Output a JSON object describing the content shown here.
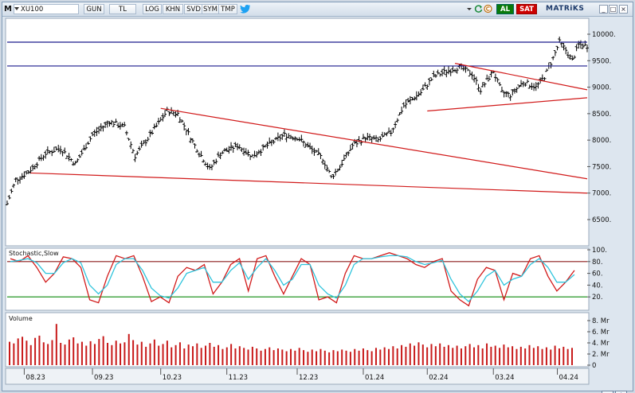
{
  "toolbar": {
    "menu_label": "M",
    "symbol": "XU100",
    "period": "GUN",
    "currency": "TL",
    "buttons": [
      "LOG",
      "KHN",
      "SVD",
      "SYM",
      "TMP"
    ],
    "buy_label": "AL",
    "sell_label": "SAT",
    "brand": "MATRiKS"
  },
  "icons": {
    "twitter": "twitter-icon",
    "refresh": "refresh-icon",
    "copyright": "c-icon",
    "minimize": "minimize-icon",
    "maximize": "maximize-icon",
    "close": "close-icon",
    "bottom_a": "sync-icon",
    "bottom_b": "settings-icon"
  },
  "colors": {
    "price_bars": "#000000",
    "horizontal_lines": "#1a1a8c",
    "trend_lines": "#d11a1a",
    "stoch_k": "#d11a1a",
    "stoch_d": "#2fc4dc",
    "stoch_upper": "#8c1a1a",
    "stoch_lower": "#0a8a0a",
    "volume": "#c81a1a",
    "panel_bg": "#ffffff"
  },
  "chart_data": [
    {
      "type": "ohlc",
      "x_tick_labels": [
        "08.23",
        "09.23",
        "10.23",
        "11.23",
        "12.23",
        "01.24",
        "02.24",
        "03.24",
        "04.24"
      ],
      "y_tick_labels": [
        "10000.",
        "9500.",
        "9000.",
        "8500.",
        "8000.",
        "7500.",
        "7000.",
        "6500."
      ],
      "ylim": [
        6000,
        10250
      ],
      "horizontal_levels": [
        9850,
        9400
      ],
      "trend_lines": [
        {
          "from": [
            "08.23",
            7380
          ],
          "to": [
            "end",
            7000
          ]
        },
        {
          "from": [
            "10.23",
            8600
          ],
          "to": [
            "end",
            7270
          ]
        },
        {
          "from": [
            "03.24",
            9450
          ],
          "to": [
            "end",
            8950
          ]
        },
        {
          "from": [
            "02.24",
            8550
          ],
          "to": [
            "end",
            8800
          ]
        }
      ],
      "price_path": [
        [
          0,
          6800
        ],
        [
          4,
          7250
        ],
        [
          10,
          7400
        ],
        [
          18,
          7750
        ],
        [
          25,
          7850
        ],
        [
          32,
          7550
        ],
        [
          40,
          8100
        ],
        [
          48,
          8350
        ],
        [
          55,
          8250
        ],
        [
          60,
          7700
        ],
        [
          68,
          8150
        ],
        [
          75,
          8550
        ],
        [
          80,
          8500
        ],
        [
          88,
          7900
        ],
        [
          95,
          7450
        ],
        [
          100,
          7750
        ],
        [
          108,
          7900
        ],
        [
          115,
          7700
        ],
        [
          122,
          7900
        ],
        [
          130,
          8100
        ],
        [
          136,
          8050
        ],
        [
          142,
          7850
        ],
        [
          148,
          7650
        ],
        [
          152,
          7300
        ],
        [
          156,
          7500
        ],
        [
          162,
          7900
        ],
        [
          168,
          8050
        ],
        [
          174,
          8000
        ],
        [
          180,
          8150
        ],
        [
          186,
          8650
        ],
        [
          194,
          8900
        ],
        [
          200,
          9200
        ],
        [
          206,
          9300
        ],
        [
          212,
          9380
        ],
        [
          218,
          9250
        ],
        [
          222,
          8950
        ],
        [
          228,
          9300
        ],
        [
          232,
          8900
        ],
        [
          236,
          8850
        ],
        [
          242,
          9100
        ],
        [
          248,
          9000
        ],
        [
          252,
          9200
        ],
        [
          256,
          9550
        ],
        [
          259,
          9850
        ],
        [
          262,
          9700
        ],
        [
          265,
          9500
        ],
        [
          268,
          9800
        ],
        [
          272,
          9780
        ]
      ]
    },
    {
      "type": "line",
      "title": "Stochastic,Slow",
      "y_tick_labels": [
        "100.",
        "80.",
        "60.",
        "40.",
        "20."
      ],
      "ylim": [
        0,
        100
      ],
      "levels": [
        80,
        20
      ],
      "series": [
        {
          "key": "k",
          "values": [
            85,
            80,
            90,
            70,
            45,
            60,
            88,
            85,
            70,
            15,
            10,
            55,
            90,
            85,
            90,
            55,
            12,
            20,
            10,
            55,
            70,
            65,
            75,
            25,
            45,
            75,
            85,
            30,
            85,
            90,
            55,
            25,
            55,
            85,
            75,
            15,
            20,
            10,
            60,
            90,
            85,
            85,
            90,
            95,
            90,
            85,
            75,
            70,
            80,
            85,
            30,
            15,
            5,
            50,
            70,
            65,
            15,
            60,
            55,
            85,
            90,
            55,
            30,
            45,
            65
          ]
        },
        {
          "key": "d",
          "values": [
            80,
            82,
            85,
            78,
            60,
            60,
            78,
            85,
            78,
            40,
            25,
            40,
            75,
            85,
            85,
            65,
            35,
            22,
            18,
            35,
            60,
            65,
            70,
            45,
            45,
            65,
            78,
            50,
            70,
            85,
            65,
            40,
            50,
            75,
            75,
            40,
            25,
            18,
            40,
            75,
            85,
            85,
            88,
            90,
            90,
            88,
            80,
            75,
            78,
            82,
            50,
            25,
            12,
            30,
            55,
            65,
            40,
            50,
            55,
            75,
            85,
            70,
            45,
            45,
            58
          ]
        }
      ]
    },
    {
      "type": "bar",
      "title": "Volume",
      "y_tick_labels": [
        "8. Mr",
        "6. Mr",
        "4. Mr",
        "2. Mr",
        "0"
      ],
      "ylim": [
        0,
        8
      ],
      "unit": "Mr",
      "values": [
        4.2,
        3.9,
        4.8,
        5.1,
        4.4,
        3.6,
        4.9,
        5.3,
        4.1,
        3.8,
        4.5,
        7.4,
        4.0,
        3.7,
        4.6,
        5.0,
        3.9,
        4.2,
        3.5,
        4.3,
        3.8,
        4.7,
        5.2,
        4.0,
        3.6,
        4.4,
        3.9,
        4.1,
        5.6,
        4.5,
        3.7,
        4.2,
        3.3,
        3.9,
        4.6,
        3.5,
        3.8,
        4.4,
        3.2,
        3.6,
        4.1,
        3.0,
        3.7,
        3.4,
        3.9,
        3.1,
        3.5,
        4.0,
        3.3,
        3.6,
        2.9,
        3.2,
        3.8,
        3.0,
        3.4,
        3.1,
        2.8,
        3.3,
        3.0,
        2.6,
        2.9,
        3.2,
        2.7,
        3.0,
        2.8,
        2.5,
        2.9,
        2.6,
        3.1,
        2.7,
        2.4,
        2.8,
        2.5,
        2.9,
        2.6,
        2.3,
        2.7,
        2.5,
        2.8,
        2.6,
        2.4,
        2.9,
        2.6,
        3.0,
        2.7,
        2.5,
        3.1,
        2.8,
        3.2,
        2.9,
        3.4,
        3.0,
        3.6,
        3.3,
        3.9,
        3.5,
        4.1,
        3.7,
        3.2,
        3.8,
        3.4,
        3.9,
        3.3,
        3.6,
        3.1,
        3.5,
        3.0,
        3.4,
        3.8,
        3.2,
        3.6,
        3.0,
        3.9,
        3.3,
        3.5,
        3.1,
        3.7,
        3.2,
        3.4,
        2.9,
        3.3,
        3.0,
        3.6,
        3.1,
        3.4,
        2.9,
        3.2,
        2.8,
        3.5,
        3.0,
        3.3,
        2.9,
        3.1
      ]
    }
  ]
}
